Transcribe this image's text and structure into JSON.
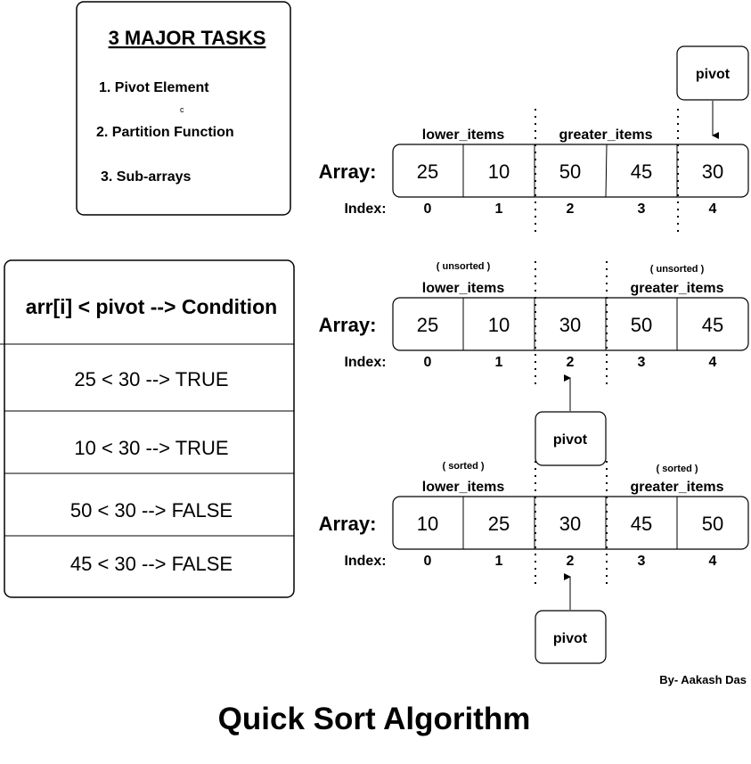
{
  "tasks": {
    "title": "3 MAJOR TASKS",
    "items": [
      "1. Pivot Element",
      "2. Partition Function",
      "3. Sub-arrays"
    ],
    "stray_mark": "c"
  },
  "condition_table": {
    "header": "arr[i] < pivot --> Condition",
    "rows": [
      "25 < 30 --> TRUE",
      "10 < 30 --> TRUE",
      "50 < 30 --> FALSE",
      "45 < 30 --> FALSE"
    ]
  },
  "common": {
    "array_label": "Array:",
    "index_label": "Index:",
    "indices": [
      "0",
      "1",
      "2",
      "3",
      "4"
    ],
    "pivot_label": "pivot",
    "lower_label": "lower_items",
    "greater_label": "greater_items"
  },
  "arrays": [
    {
      "values": [
        "25",
        "10",
        "50",
        "45",
        "30"
      ]
    },
    {
      "values": [
        "25",
        "10",
        "30",
        "50",
        "45"
      ],
      "lower_note": "( unsorted )",
      "greater_note": "( unsorted )"
    },
    {
      "values": [
        "10",
        "25",
        "30",
        "45",
        "50"
      ],
      "lower_note": "( sorted )",
      "greater_note": "( sorted )"
    }
  ],
  "credit": "By- Aakash Das",
  "title": "Quick Sort Algorithm"
}
